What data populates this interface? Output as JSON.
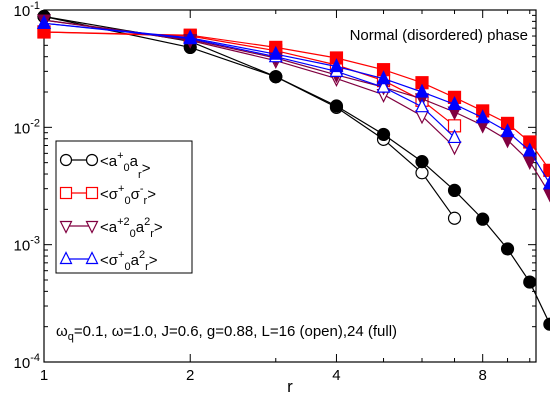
{
  "chart_data": {
    "type": "line",
    "xlabel": "r",
    "ylabel": "",
    "x_scale": "log",
    "y_scale": "log",
    "xlim": [
      1,
      10.3
    ],
    "ylim": [
      0.0001,
      0.1
    ],
    "x_ticks": [
      1,
      2,
      4,
      8
    ],
    "x_tick_labels": [
      "1",
      "2",
      "4",
      "8"
    ],
    "y_ticks": [
      0.0001,
      0.001,
      0.01,
      0.1
    ],
    "y_tick_labels": [
      {
        "base": "10",
        "exp": "-4"
      },
      {
        "base": "10",
        "exp": "-3"
      },
      {
        "base": "10",
        "exp": "-2"
      },
      {
        "base": "10",
        "exp": "-1"
      }
    ],
    "annotation_top": "Normal (disordered) phase",
    "parameters": {
      "part1": "ω",
      "sub1": "q",
      "part2": "=0.1, ω=1.0, J=0.6, g=0.88, L=16 (open),24 (full)"
    },
    "legend_position": "middle-left",
    "legend": [
      {
        "marker": "circle",
        "color": "#000000",
        "pre": "<a",
        "sup1": "+",
        "sub1": "0",
        "mid": "a",
        "sup2": "",
        "sub2": "r",
        "post": ">"
      },
      {
        "marker": "square",
        "color": "#ff0000",
        "pre": "<σ",
        "sup1": "+",
        "sub1": "0",
        "mid": "σ",
        "sup2": "-",
        "sub2": "r",
        "post": ">"
      },
      {
        "marker": "triangle-down",
        "color": "#800040",
        "pre": "<a",
        "sup1": "+2",
        "sub1": "0",
        "mid": "a",
        "sup2": "2",
        "sub2": "r",
        "post": ">"
      },
      {
        "marker": "triangle-up",
        "color": "#0000ff",
        "pre": "<σ",
        "sup1": "+",
        "sub1": "0",
        "mid": "a",
        "sup2": "2",
        "sub2": "r",
        "post": ">"
      }
    ],
    "series": [
      {
        "marker": "circle",
        "color": "#000000",
        "fill": "open",
        "x": [
          1,
          2,
          3,
          4,
          5,
          6,
          7
        ],
        "y": [
          0.088,
          0.054,
          0.027,
          0.0148,
          0.0079,
          0.0041,
          0.00168
        ]
      },
      {
        "marker": "circle",
        "color": "#000000",
        "fill": "filled",
        "x": [
          1,
          2,
          3,
          4,
          5,
          6,
          7,
          8,
          9,
          10,
          11
        ],
        "y": [
          0.088,
          0.048,
          0.027,
          0.0152,
          0.0087,
          0.0051,
          0.0029,
          0.00165,
          0.00092,
          0.00048,
          0.00021
        ]
      },
      {
        "marker": "square",
        "color": "#ff0000",
        "fill": "open",
        "x": [
          1,
          2,
          3,
          4,
          5,
          6,
          7
        ],
        "y": [
          0.065,
          0.06,
          0.045,
          0.034,
          0.025,
          0.017,
          0.0103
        ]
      },
      {
        "marker": "square",
        "color": "#ff0000",
        "fill": "filled",
        "x": [
          1,
          2,
          3,
          4,
          5,
          6,
          7,
          8,
          9,
          10,
          11
        ],
        "y": [
          0.065,
          0.061,
          0.048,
          0.039,
          0.031,
          0.024,
          0.018,
          0.0138,
          0.0108,
          0.0075,
          0.0043
        ]
      },
      {
        "marker": "triangle-down",
        "color": "#800040",
        "fill": "open",
        "x": [
          1,
          2,
          3,
          4,
          5,
          6,
          7
        ],
        "y": [
          0.082,
          0.055,
          0.037,
          0.026,
          0.019,
          0.0125,
          0.0068
        ]
      },
      {
        "marker": "triangle-down",
        "color": "#800040",
        "fill": "filled",
        "x": [
          1,
          2,
          3,
          4,
          5,
          6,
          7,
          8,
          9,
          10,
          11
        ],
        "y": [
          0.082,
          0.056,
          0.039,
          0.028,
          0.022,
          0.0175,
          0.0135,
          0.0104,
          0.0078,
          0.0051,
          0.0027
        ]
      },
      {
        "marker": "triangle-up",
        "color": "#0000ff",
        "fill": "open",
        "x": [
          1,
          2,
          3,
          4,
          5,
          6,
          7
        ],
        "y": [
          0.077,
          0.057,
          0.04,
          0.03,
          0.022,
          0.015,
          0.0082
        ]
      },
      {
        "marker": "triangle-up",
        "color": "#0000ff",
        "fill": "filled",
        "x": [
          1,
          2,
          3,
          4,
          5,
          6,
          7,
          8,
          9,
          10,
          11
        ],
        "y": [
          0.077,
          0.058,
          0.042,
          0.033,
          0.026,
          0.02,
          0.0157,
          0.0121,
          0.0092,
          0.0063,
          0.0033
        ]
      }
    ]
  }
}
